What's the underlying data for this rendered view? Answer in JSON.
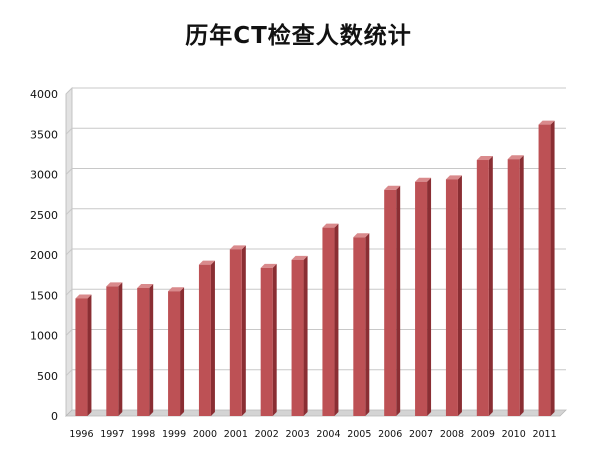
{
  "chart_data": {
    "type": "bar",
    "title": "历年CT检查人数统计",
    "xlabel": "",
    "ylabel": "",
    "categories": [
      "1996",
      "1997",
      "1998",
      "1999",
      "2000",
      "2001",
      "2002",
      "2003",
      "2004",
      "2005",
      "2006",
      "2007",
      "2008",
      "2009",
      "2010",
      "2011"
    ],
    "values": [
      1460,
      1610,
      1590,
      1550,
      1880,
      2070,
      1840,
      1940,
      2340,
      2220,
      2810,
      2910,
      2940,
      3180,
      3190,
      3620
    ],
    "ylim": [
      0,
      4000
    ],
    "yticks": [
      "0",
      "500",
      "1000",
      "1500",
      "2000",
      "2500",
      "3000",
      "3500",
      "4000"
    ],
    "grid": true,
    "legend": "none",
    "colors": {
      "bar_front": "#bd5155",
      "bar_side": "#8a2e33",
      "bar_top": "#d98a8c",
      "grid": "#c8c8c8",
      "wall": "#e2e2e2"
    }
  }
}
